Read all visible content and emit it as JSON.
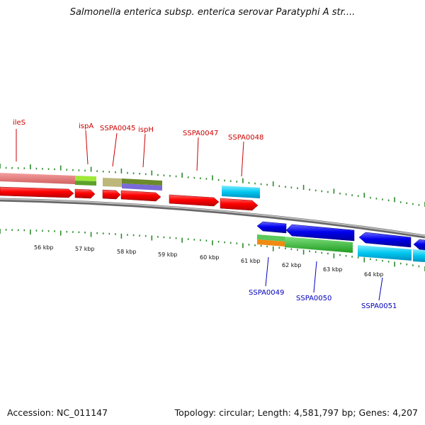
{
  "title": "Salmonella enterica subsp. enterica serovar Paratyphi A str....",
  "footer": {
    "accession": "Accession: NC_011147",
    "summary": "Topology: circular; Length: 4,581,797 bp; Genes: 4,207"
  },
  "colors": {
    "forward_label": "#cc0000",
    "reverse_label": "#0000bb",
    "tick_mark": "#2a8a2a",
    "backbone": "#888888"
  },
  "scale_labels": [
    "56 kbp",
    "57 kbp",
    "58 kbp",
    "59 kbp",
    "60 kbp",
    "61 kbp",
    "62 kbp",
    "63 kbp",
    "64 kbp"
  ],
  "forward_gene_labels": [
    "ileS",
    "ispA",
    "SSPA0045",
    "ispH",
    "SSPA0047",
    "SSPA0048"
  ],
  "reverse_gene_labels": [
    "SSPA0049",
    "SSPA0050",
    "SSPA0051"
  ]
}
